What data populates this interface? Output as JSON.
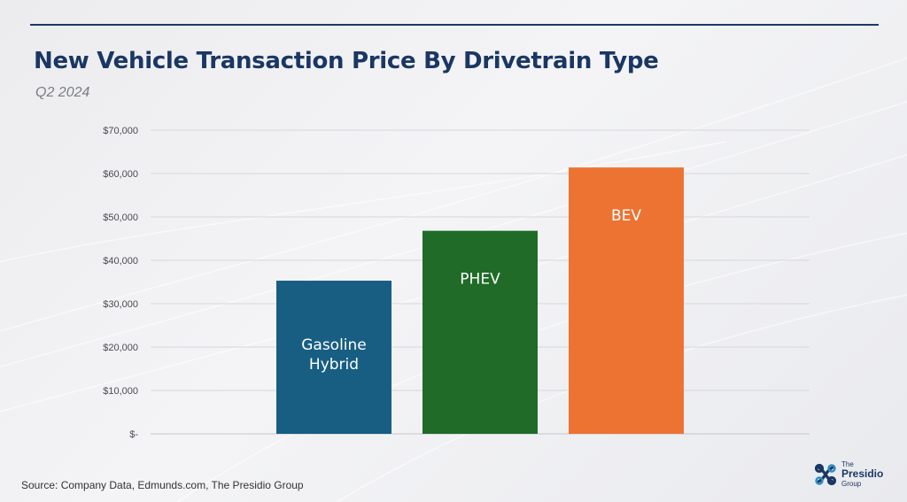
{
  "title": "New Vehicle Transaction Price By Drivetrain Type",
  "subtitle": "Q2 2024",
  "source": "Source: Company Data, Edmunds.com, The Presidio Group",
  "logo": {
    "line1": "The",
    "line2": "Presidio",
    "line3": "Group"
  },
  "colors": {
    "title": "#1a3764",
    "rule": "#1d3a66"
  },
  "chart_data": {
    "type": "bar",
    "categories": [
      "Gasoline Hybrid",
      "PHEV",
      "BEV"
    ],
    "bar_labels": [
      [
        "Gasoline",
        "Hybrid"
      ],
      [
        "PHEV"
      ],
      [
        "BEV"
      ]
    ],
    "values": [
      35300,
      46800,
      61400
    ],
    "colors": [
      "#175e82",
      "#1f6b27",
      "#ec7332"
    ],
    "ylim": [
      0,
      70000
    ],
    "yticks": [
      0,
      10000,
      20000,
      30000,
      40000,
      50000,
      60000,
      70000
    ],
    "ytick_labels": [
      "$-",
      "$10,000",
      "$20,000",
      "$30,000",
      "$40,000",
      "$50,000",
      "$60,000",
      "$70,000"
    ],
    "grid": true,
    "xlabel": "",
    "ylabel": ""
  }
}
